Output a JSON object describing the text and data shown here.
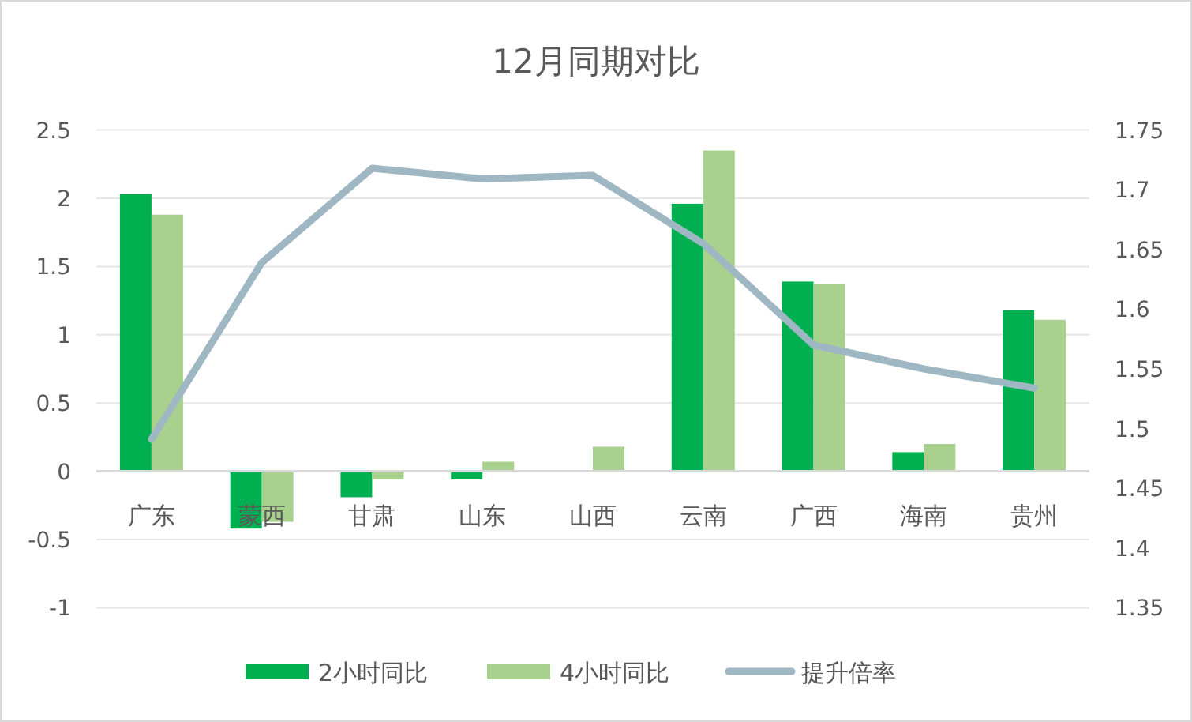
{
  "chart_data": {
    "type": "bar",
    "title": "12月同期对比",
    "categories": [
      "广东",
      "蒙西",
      "甘肃",
      "山东",
      "山西",
      "云南",
      "广西",
      "海南",
      "贵州"
    ],
    "series": [
      {
        "name": "2小时同比",
        "color": "#00b050",
        "values": [
          2.03,
          -0.42,
          -0.19,
          -0.06,
          0,
          1.96,
          1.39,
          0.14,
          1.18
        ]
      },
      {
        "name": "4小时同比",
        "color": "#a9d18e",
        "values": [
          1.88,
          -0.37,
          -0.06,
          0.07,
          0.18,
          2.35,
          1.37,
          0.2,
          1.11
        ]
      },
      {
        "name": "提升倍率",
        "type": "line",
        "axis": "y2",
        "color": "#9fb7c2",
        "values": [
          1.491,
          1.639,
          1.718,
          1.709,
          1.712,
          1.655,
          1.57,
          1.55,
          1.534
        ]
      }
    ],
    "ylim": [
      -1,
      2.5
    ],
    "yticks": [
      -1,
      -0.5,
      0,
      0.5,
      1,
      1.5,
      2,
      2.5
    ],
    "y2lim": [
      1.35,
      1.75
    ],
    "y2ticks": [
      1.35,
      1.4,
      1.45,
      1.5,
      1.55,
      1.6,
      1.65,
      1.7,
      1.75
    ],
    "grid": "y",
    "legend": "bottom"
  }
}
